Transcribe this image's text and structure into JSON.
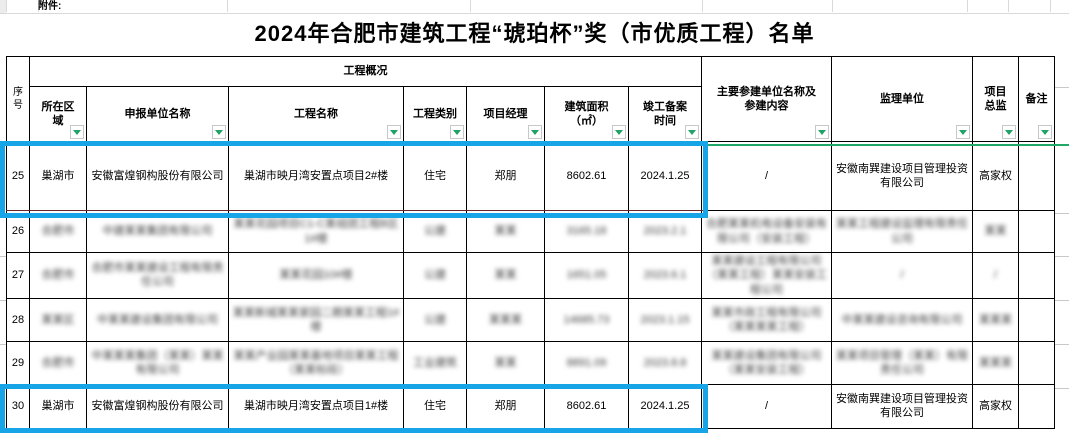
{
  "attachment_label": "附件:",
  "title": "2024年合肥市建筑工程“琥珀杯”奖（市优质工程）名单",
  "colors": {
    "highlight_blue": "#18a5e8",
    "accent_green": "#1fa868",
    "filter_arrow_green": "#21a366",
    "border_black": "#000000",
    "gridline_grey": "#d9d9d9"
  },
  "table": {
    "group_header": "工程概况",
    "columns": {
      "no": "序号",
      "region": "所在区\n域",
      "applicant": "申报单位名称",
      "project": "工程名称",
      "category": "工程类别",
      "manager": "项目经理",
      "area": "建筑面积\n（㎡）",
      "completion_date": "竣工备案\n时间",
      "participants": "主要参建单位名称及\n参建内容",
      "supervisor": "监理单位",
      "director": "项目\n总监",
      "remark": "备注"
    },
    "rows": [
      {
        "no": "25",
        "blurred": false,
        "highlighted": true,
        "cells": {
          "region": "巢湖市",
          "applicant": "安徽富煌钢构股份有限公司",
          "project": "巢湖市映月湾安置点项目2#楼",
          "category": "住宅",
          "manager": "郑朋",
          "area": "8602.61",
          "completion_date": "2024.1.25",
          "participants": "/",
          "supervisor": "安徽南巽建设项目管理投资有限公司",
          "director": "高家权",
          "remark": ""
        }
      },
      {
        "no": "26",
        "blurred": true,
        "highlighted": false,
        "cells": {
          "region": "合肥市",
          "applicant": "中建某某集团有限公司",
          "project": "某某花园项目C1-C某组团工程B区1#楼",
          "category": "公建",
          "manager": "某某",
          "area": "3165.18",
          "completion_date": "2023.2.1",
          "participants": "合肥某某机电设备安装有限公司（安装工程）",
          "supervisor": "某某工程建设监理有限责任公司",
          "director": "某某",
          "remark": ""
        }
      },
      {
        "no": "27",
        "blurred": true,
        "highlighted": false,
        "cells": {
          "region": "合肥市",
          "applicant": "合肥市某某建设工程有限责任公司",
          "project": "某某花园10#楼",
          "category": "公建",
          "manager": "某某",
          "area": "1651.05",
          "completion_date": "2023.6.1",
          "participants": "某某建设工程有限公司（某某工程）某某安装工程公司",
          "supervisor": "/",
          "director": "/",
          "remark": ""
        }
      },
      {
        "no": "28",
        "blurred": true,
        "highlighted": false,
        "cells": {
          "region": "某某区",
          "applicant": "中某某建设集团有限公司",
          "project": "某某新城某某家园二期某某工程1#楼",
          "category": "公建",
          "manager": "某某某",
          "area": "14685.73",
          "completion_date": "2023.1.15",
          "participants": "某某市政工程有限公司（某某某某工程）",
          "supervisor": "中某某建设咨询有限公司",
          "director": "某某某",
          "remark": ""
        }
      },
      {
        "no": "29",
        "blurred": true,
        "highlighted": false,
        "cells": {
          "region": "合肥市",
          "applicant": "中某某某集团（某某）某某有限公司",
          "project": "某某产业园某某基地项目某某工程（某某标段）",
          "category": "工业建筑",
          "manager": "某某",
          "area": "8891.09",
          "completion_date": "2023.8.8",
          "participants": "某某建设集团有限公司（某某安装工程）",
          "supervisor": "某某项目管理（某某）有限责任公司",
          "director": "某某某",
          "remark": ""
        }
      },
      {
        "no": "30",
        "blurred": false,
        "highlighted": true,
        "cells": {
          "region": "巢湖市",
          "applicant": "安徽富煌钢构股份有限公司",
          "project": "巢湖市映月湾安置点项目1#楼",
          "category": "住宅",
          "manager": "郑朋",
          "area": "8602.61",
          "completion_date": "2024.1.25",
          "participants": "/",
          "supervisor": "安徽南巽建设项目管理投资有限公司",
          "director": "高家权",
          "remark": ""
        }
      }
    ]
  }
}
